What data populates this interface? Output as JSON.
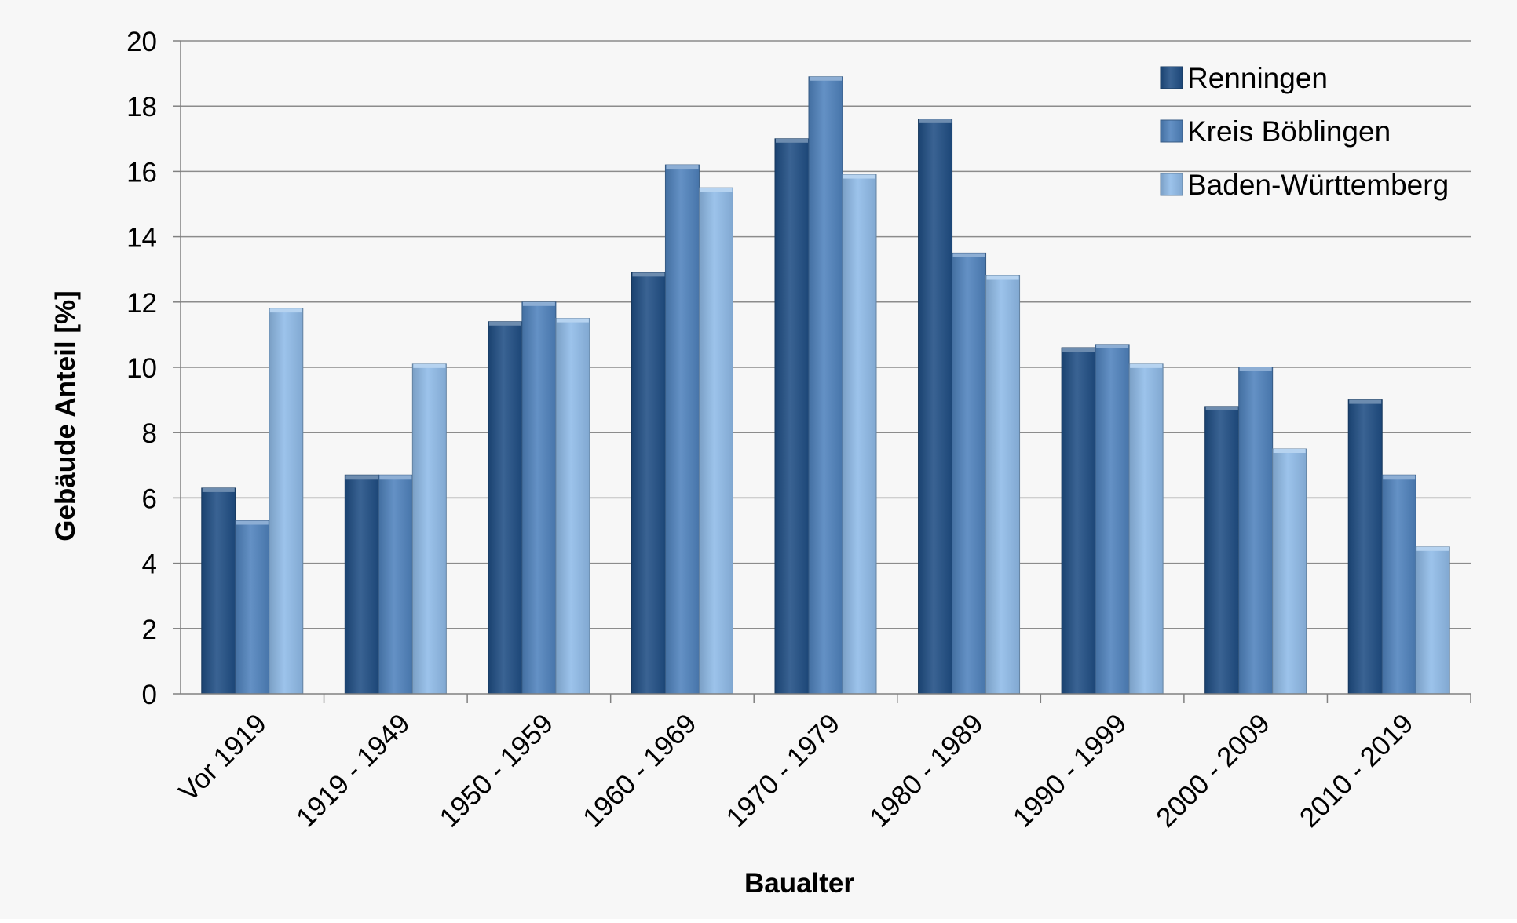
{
  "chart_data": {
    "type": "bar",
    "title": "",
    "xlabel": "Baualter",
    "ylabel": "Gebäude Anteil [%]",
    "ylim": [
      0,
      20
    ],
    "ytick_step": 2,
    "grid": true,
    "legend_position": "top-right",
    "categories": [
      "Vor 1919",
      "1919 - 1949",
      "1950 - 1959",
      "1960 - 1969",
      "1970 - 1979",
      "1980 - 1989",
      "1990 - 1999",
      "2000 - 2009",
      "2010 - 2019"
    ],
    "series": [
      {
        "name": "Renningen",
        "color": "#1f4e84",
        "values": [
          6.3,
          6.7,
          11.4,
          12.9,
          17.0,
          17.6,
          10.6,
          8.8,
          9.0
        ]
      },
      {
        "name": "Kreis Böblingen",
        "color": "#4f82bd",
        "values": [
          5.3,
          6.7,
          12.0,
          16.2,
          18.9,
          13.5,
          10.7,
          10.0,
          6.7
        ]
      },
      {
        "name": "Baden-Württemberg",
        "color": "#8fbbe8",
        "values": [
          11.8,
          10.1,
          11.5,
          15.5,
          15.9,
          12.8,
          10.1,
          7.5,
          4.5
        ]
      }
    ]
  }
}
